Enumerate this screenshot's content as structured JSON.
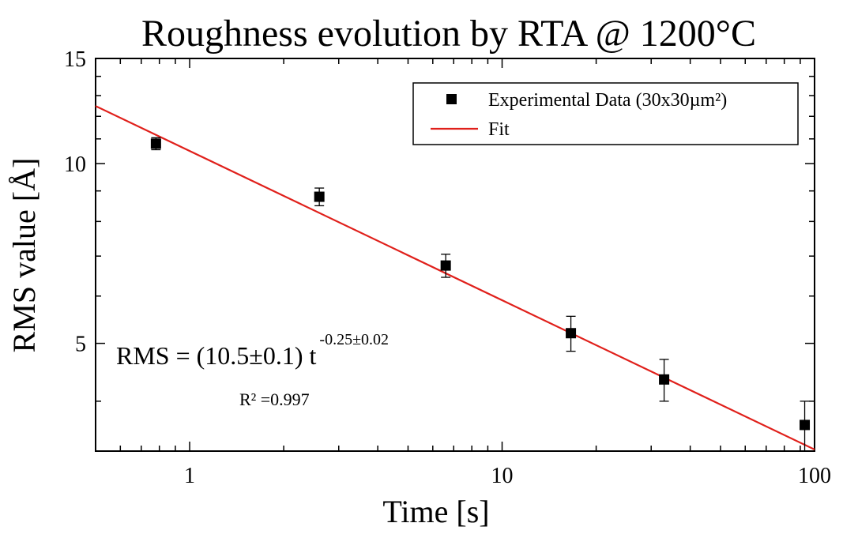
{
  "chart_data": {
    "type": "scatter",
    "title": "Roughness evolution by RTA @ 1200°C",
    "xlabel": "Time [s]",
    "ylabel": "RMS value [Å]",
    "xscale": "log",
    "yscale": "log",
    "xlim": [
      0.5,
      100
    ],
    "ylim": [
      3.3,
      15
    ],
    "x_ticks": [
      1,
      10,
      100
    ],
    "x_tick_labels": [
      "1",
      "10",
      "100"
    ],
    "y_ticks": [
      5,
      10,
      15
    ],
    "y_tick_labels": [
      "5",
      "10",
      "15"
    ],
    "legend_position": "top-right",
    "series": [
      {
        "name": "Experimental Data (30x30µm²)",
        "kind": "points",
        "marker": "square",
        "color": "#000000",
        "x": [
          0.78,
          2.6,
          6.6,
          16.6,
          33,
          93
        ],
        "y": [
          10.8,
          8.8,
          6.75,
          5.2,
          4.35,
          3.65
        ],
        "yerr": [
          0.25,
          0.3,
          0.3,
          0.35,
          0.35,
          0.35
        ]
      },
      {
        "name": "Fit",
        "kind": "line",
        "color": "#e0201b",
        "equation": {
          "a": 10.5,
          "b": -0.25
        },
        "x": [
          0.5,
          100
        ]
      }
    ],
    "annotations": {
      "equation_prefix": "RMS = (10.5±0.1) t",
      "equation_exponent": "-0.25±0.02",
      "r_squared": "R² =0.997"
    }
  }
}
